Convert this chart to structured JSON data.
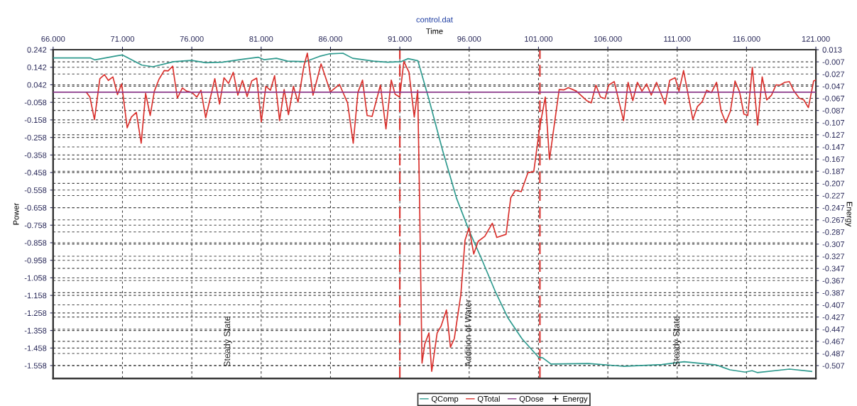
{
  "chart_data": {
    "type": "line",
    "title": "control.dat",
    "xlabel": "Time",
    "ylabel": "Power",
    "y2label": "Energy",
    "xlim": [
      66,
      121
    ],
    "xticks": [
      {
        "value": 66,
        "label": "66.000"
      },
      {
        "value": 71,
        "label": "71.000"
      },
      {
        "value": 76,
        "label": "76.000"
      },
      {
        "value": 81,
        "label": "81.000"
      },
      {
        "value": 86,
        "label": "86.000"
      },
      {
        "value": 91,
        "label": "91.000"
      },
      {
        "value": 96,
        "label": "96.000"
      },
      {
        "value": 101,
        "label": "101.000"
      },
      {
        "value": 106,
        "label": "106.000"
      },
      {
        "value": 111,
        "label": "111.000"
      },
      {
        "value": 116,
        "label": "116.000"
      },
      {
        "value": 121,
        "label": "121.000"
      }
    ],
    "ylim": [
      -1.631,
      0.242
    ],
    "yticks": [
      0.242,
      0.142,
      0.042,
      -0.058,
      -0.158,
      -0.258,
      -0.358,
      -0.458,
      -0.558,
      -0.658,
      -0.758,
      -0.858,
      -0.958,
      -1.058,
      -1.158,
      -1.258,
      -1.358,
      -1.458,
      -1.558
    ],
    "y2lim": [
      -0.528,
      0.013
    ],
    "y2ticks": [
      0.013,
      -0.007,
      -0.027,
      -0.047,
      -0.067,
      -0.087,
      -0.107,
      -0.127,
      -0.147,
      -0.167,
      -0.187,
      -0.207,
      -0.227,
      -0.247,
      -0.267,
      -0.287,
      -0.307,
      -0.327,
      -0.347,
      -0.367,
      -0.387,
      -0.407,
      -0.427,
      -0.447,
      -0.467,
      -0.487,
      -0.507
    ],
    "grid": true,
    "legend": "bottom",
    "line_style": "solid",
    "series": [
      {
        "name": "QComp",
        "color": "#2e9a8e",
        "x": [
          66,
          68.7,
          69.0,
          70.6,
          71.0,
          72.4,
          73.2,
          74.7,
          76.0,
          77.0,
          78.2,
          79.7,
          80.8,
          81.2,
          82.1,
          82.9,
          84.2,
          85.2,
          85.9,
          86.9,
          87.6,
          89.1,
          90.1,
          91.1,
          91.6,
          92.3,
          93.1,
          94.1,
          95.1,
          96.0,
          96.9,
          97.9,
          98.8,
          99.8,
          101.0,
          101.3,
          101.9,
          104.6,
          107.1,
          109.9,
          111.5,
          113.8,
          114.8,
          115.9,
          116.4,
          116.8,
          119.1,
          120.7
        ],
        "values": [
          0.195,
          0.195,
          0.184,
          0.207,
          0.212,
          0.154,
          0.145,
          0.174,
          0.181,
          0.168,
          0.171,
          0.188,
          0.199,
          0.185,
          0.193,
          0.177,
          0.174,
          0.204,
          0.218,
          0.222,
          0.193,
          0.177,
          0.171,
          0.174,
          0.191,
          0.179,
          -0.041,
          -0.336,
          -0.607,
          -0.79,
          -0.951,
          -1.139,
          -1.287,
          -1.404,
          -1.51,
          -1.514,
          -1.549,
          -1.546,
          -1.562,
          -1.552,
          -1.536,
          -1.554,
          -1.582,
          -1.595,
          -1.587,
          -1.598,
          -1.578,
          -1.591
        ]
      },
      {
        "name": "QTotal",
        "color": "#d9302c",
        "x": [
          68.4,
          68.65,
          68.98,
          69.37,
          69.7,
          69.98,
          70.31,
          70.64,
          70.94,
          71.34,
          71.64,
          72.0,
          72.35,
          72.67,
          73.0,
          73.3,
          73.63,
          74.01,
          74.29,
          74.62,
          74.96,
          75.32,
          75.62,
          76.0,
          76.36,
          76.66,
          77.0,
          77.66,
          78.0,
          78.32,
          78.65,
          78.99,
          79.32,
          79.65,
          79.99,
          80.32,
          80.68,
          81.01,
          81.34,
          81.67,
          81.97,
          82.33,
          82.66,
          82.97,
          83.33,
          83.66,
          84.08,
          84.33,
          84.74,
          85.32,
          85.99,
          86.65,
          87.23,
          87.64,
          87.98,
          88.31,
          88.64,
          89.0,
          89.6,
          90.0,
          90.38,
          90.66,
          90.99,
          91.29,
          91.66,
          92.04,
          92.29,
          92.42,
          92.6,
          92.8,
          93.1,
          93.3,
          93.69,
          93.97,
          94.36,
          94.65,
          94.93,
          95.4,
          95.7,
          95.99,
          96.33,
          96.65,
          97.13,
          97.67,
          97.99,
          98.66,
          99.0,
          99.33,
          99.75,
          100.24,
          100.66,
          101.08,
          101.49,
          101.79,
          102.49,
          102.82,
          103.15,
          103.73,
          104.47,
          104.8,
          105.14,
          105.47,
          105.8,
          106.05,
          106.46,
          107.13,
          107.46,
          107.8,
          108.13,
          108.46,
          108.8,
          109.13,
          109.51,
          110.13,
          110.46,
          110.85,
          111.13,
          111.46,
          112.13,
          112.46,
          112.8,
          113.13,
          113.46,
          113.84,
          114.17,
          114.5,
          114.84,
          115.17,
          115.5,
          115.81,
          116.09,
          116.42,
          116.8,
          117.13,
          117.46,
          117.8,
          118.13,
          118.41,
          118.76,
          119.09,
          119.42,
          119.8,
          120.13,
          120.46,
          120.84,
          121.0
        ],
        "values": [
          -0.001,
          -0.028,
          -0.156,
          0.077,
          0.1,
          0.067,
          0.087,
          -0.014,
          0.047,
          -0.203,
          -0.142,
          -0.115,
          -0.291,
          -0.007,
          -0.133,
          0.006,
          0.073,
          0.123,
          0.121,
          0.148,
          -0.034,
          0.024,
          0.006,
          -0.001,
          -0.028,
          0.011,
          -0.146,
          0.077,
          -0.068,
          0.082,
          0.05,
          0.113,
          -0.017,
          0.067,
          -0.025,
          0.064,
          0.08,
          -0.169,
          0.033,
          0.011,
          0.094,
          -0.162,
          0.015,
          -0.128,
          0.033,
          -0.057,
          0.148,
          0.222,
          -0.017,
          0.161,
          0.002,
          0.044,
          -0.061,
          -0.291,
          -0.001,
          0.069,
          -0.133,
          -0.138,
          0.04,
          -0.21,
          0.069,
          -0.012,
          -0.028,
          0.175,
          0.114,
          -0.142,
          0.011,
          -0.6,
          -1.544,
          -1.435,
          -1.372,
          -1.591,
          -1.372,
          -1.334,
          -1.241,
          -1.453,
          -1.404,
          -1.154,
          -0.844,
          -0.773,
          -0.922,
          -0.85,
          -0.821,
          -0.747,
          -0.828,
          -0.81,
          -0.601,
          -0.56,
          -0.567,
          -0.459,
          -0.452,
          -0.203,
          -0.028,
          -0.384,
          0.015,
          0.013,
          0.026,
          0.006,
          -0.048,
          -0.061,
          0.04,
          -0.028,
          -0.037,
          0.04,
          0.06,
          -0.162,
          0.056,
          -0.048,
          0.056,
          0.006,
          0.047,
          -0.017,
          0.056,
          -0.068,
          0.067,
          0.082,
          0.006,
          0.123,
          -0.156,
          -0.082,
          -0.055,
          0.011,
          -0.003,
          0.056,
          -0.108,
          -0.173,
          -0.108,
          0.064,
          0.002,
          -0.125,
          -0.133,
          0.141,
          -0.187,
          0.087,
          -0.044,
          -0.017,
          0.042,
          0.04,
          0.056,
          0.06,
          0.006,
          -0.034,
          -0.044,
          -0.088,
          0.064,
          0.069
        ]
      },
      {
        "name": "QDose",
        "color": "#8b3a8b",
        "x": [
          66,
          121
        ],
        "values": [
          0.0,
          0.0
        ]
      },
      {
        "name": "Energy",
        "color": "#000000",
        "marker": "cross"
      }
    ],
    "ref_lines": [
      {
        "axis": "x",
        "value": 91.0,
        "color": "#d9302c",
        "line_style": "dashed"
      },
      {
        "axis": "x",
        "value": 101.1,
        "color": "#d9302c",
        "line_style": "dashed"
      }
    ],
    "annotations": [
      "Steady State",
      "Addition of Water",
      "Steady State"
    ]
  }
}
